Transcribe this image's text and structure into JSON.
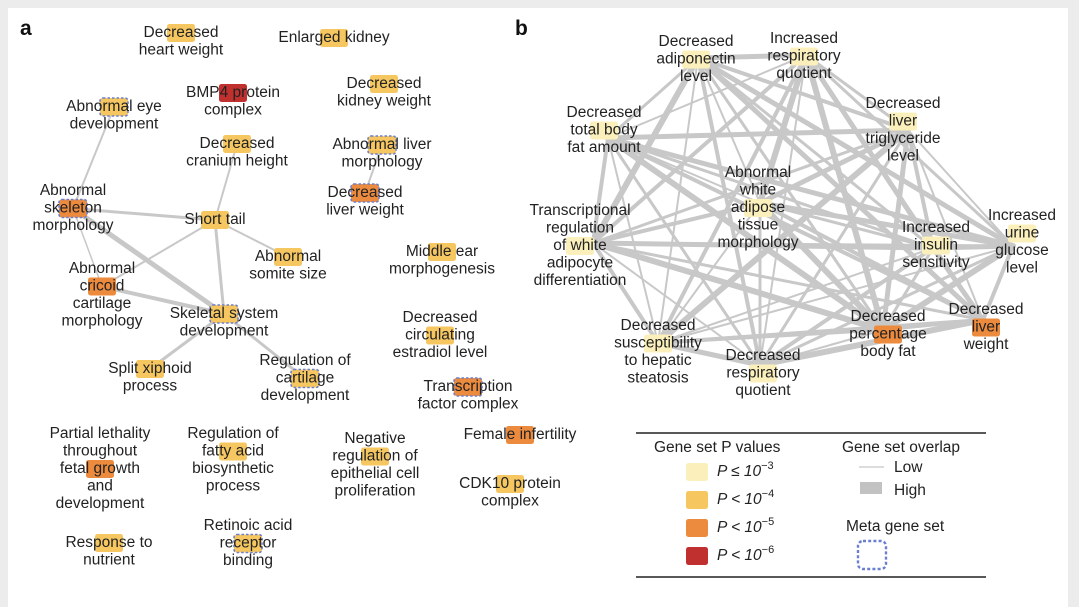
{
  "colors": {
    "p3": "#fbf0bc",
    "p4": "#f6c761",
    "p5": "#ec8b3e",
    "p6": "#c0302e",
    "meta": "#6b7fd0",
    "edge": "#c8c8c8"
  },
  "panels": {
    "a": {
      "letter": "a",
      "nodes": [
        {
          "id": "dhw",
          "lines": [
            "Decreased",
            "heart weight"
          ],
          "color": "p4"
        },
        {
          "id": "ek",
          "lines": [
            "Enlarged kidney"
          ],
          "color": "p4"
        },
        {
          "id": "dkw",
          "lines": [
            "Decreased",
            "kidney weight"
          ],
          "color": "p4"
        },
        {
          "id": "bmp",
          "lines": [
            "BMP4 protein",
            "complex"
          ],
          "color": "p6"
        },
        {
          "id": "aed",
          "lines": [
            "Abnormal eye",
            "development"
          ],
          "color": "p4",
          "meta": true
        },
        {
          "id": "dch",
          "lines": [
            "Decreased",
            "cranium height"
          ],
          "color": "p4"
        },
        {
          "id": "alm",
          "lines": [
            "Abnormal liver",
            "morphology"
          ],
          "color": "p4",
          "meta": true
        },
        {
          "id": "dlw",
          "lines": [
            "Decreased",
            "liver weight"
          ],
          "color": "p5",
          "meta": true
        },
        {
          "id": "asm",
          "lines": [
            "Abnormal",
            "skeleton",
            "morphology"
          ],
          "color": "p5",
          "meta": true
        },
        {
          "id": "st",
          "lines": [
            "Short tail"
          ],
          "color": "p4"
        },
        {
          "id": "ass",
          "lines": [
            "Abnormal",
            "somite size"
          ],
          "color": "p4"
        },
        {
          "id": "mem",
          "lines": [
            "Middle ear",
            "morphogenesis"
          ],
          "color": "p4"
        },
        {
          "id": "acc",
          "lines": [
            "Abnormal",
            "cricoid",
            "cartilage",
            "morphology"
          ],
          "color": "p5"
        },
        {
          "id": "ssd",
          "lines": [
            "Skeletal system",
            "development"
          ],
          "color": "p4",
          "meta": true
        },
        {
          "id": "dce",
          "lines": [
            "Decreased",
            "circulating",
            "estradiol level"
          ],
          "color": "p4"
        },
        {
          "id": "sxp",
          "lines": [
            "Split xiphoid",
            "process"
          ],
          "color": "p4"
        },
        {
          "id": "rcd",
          "lines": [
            "Regulation of",
            "cartilage",
            "development"
          ],
          "color": "p4",
          "meta": true
        },
        {
          "id": "tfc",
          "lines": [
            "Transcription",
            "factor complex"
          ],
          "color": "p5",
          "meta": true
        },
        {
          "id": "plt",
          "lines": [
            "Partial lethality",
            "throughout",
            "fetal growth",
            "and",
            "development"
          ],
          "color": "p5"
        },
        {
          "id": "rfa",
          "lines": [
            "Regulation of",
            "fatty acid",
            "biosynthetic",
            "process"
          ],
          "color": "p4"
        },
        {
          "id": "nre",
          "lines": [
            "Negative",
            "regulation of",
            "epithelial cell",
            "proliferation"
          ],
          "color": "p4"
        },
        {
          "id": "fi",
          "lines": [
            "Female infertility"
          ],
          "color": "p5"
        },
        {
          "id": "cdk",
          "lines": [
            "CDK10 protein",
            "complex"
          ],
          "color": "p4"
        },
        {
          "id": "rtn",
          "lines": [
            "Response to",
            "nutrient"
          ],
          "color": "p4"
        },
        {
          "id": "rar",
          "lines": [
            "Retinoic acid",
            "receptor",
            "binding"
          ],
          "color": "p4",
          "meta": true
        }
      ],
      "edges": [
        {
          "from": "aed",
          "to": "asm",
          "w": 2
        },
        {
          "from": "asm",
          "to": "st",
          "w": 3
        },
        {
          "from": "asm",
          "to": "ssd",
          "w": 5
        },
        {
          "from": "asm",
          "to": "acc",
          "w": 1.5
        },
        {
          "from": "dch",
          "to": "st",
          "w": 2
        },
        {
          "from": "st",
          "to": "ass",
          "w": 2
        },
        {
          "from": "st",
          "to": "acc",
          "w": 2
        },
        {
          "from": "st",
          "to": "ssd",
          "w": 3
        },
        {
          "from": "acc",
          "to": "ssd",
          "w": 4
        },
        {
          "from": "ssd",
          "to": "sxp",
          "w": 3
        },
        {
          "from": "ssd",
          "to": "rcd",
          "w": 3
        },
        {
          "from": "alm",
          "to": "dlw",
          "w": 2
        }
      ]
    },
    "b": {
      "letter": "b",
      "nodes": [
        {
          "id": "dal",
          "lines": [
            "Decreased",
            "adiponectin",
            "level"
          ],
          "color": "p3"
        },
        {
          "id": "irq",
          "lines": [
            "Increased",
            "respiratory",
            "quotient"
          ],
          "color": "p3"
        },
        {
          "id": "dtbf",
          "lines": [
            "Decreased",
            "total body",
            "fat amount"
          ],
          "color": "p3"
        },
        {
          "id": "dltl",
          "lines": [
            "Decreased",
            "liver",
            "triglyceride",
            "level"
          ],
          "color": "p3"
        },
        {
          "id": "awat",
          "lines": [
            "Abnormal",
            "white",
            "adipose",
            "tissue",
            "morphology"
          ],
          "color": "p3"
        },
        {
          "id": "trwad",
          "lines": [
            "Transcriptional",
            "regulation",
            "of white",
            "adipocyte",
            "differentiation"
          ],
          "color": "p3"
        },
        {
          "id": "iis",
          "lines": [
            "Increased",
            "insulin",
            "sensitivity"
          ],
          "color": "p3"
        },
        {
          "id": "iugl",
          "lines": [
            "Increased",
            "urine",
            "glucose",
            "level"
          ],
          "color": "p3"
        },
        {
          "id": "dsths",
          "lines": [
            "Decreased",
            "susceptibility",
            "to hepatic",
            "steatosis"
          ],
          "color": "p3"
        },
        {
          "id": "drq",
          "lines": [
            "Decreased",
            "respiratory",
            "quotient"
          ],
          "color": "p3"
        },
        {
          "id": "dpbf",
          "lines": [
            "Decreased",
            "percentage",
            "body fat"
          ],
          "color": "p5"
        },
        {
          "id": "dlwb",
          "lines": [
            "Decreased",
            "liver",
            "weight"
          ],
          "color": "p5"
        }
      ]
    }
  },
  "legend": {
    "pvalues_title": "Gene set P values",
    "pvalues": [
      {
        "color": "p3",
        "pre": "P ≤ 10",
        "exp": "−3"
      },
      {
        "color": "p4",
        "pre": "P < 10",
        "exp": "−4"
      },
      {
        "color": "p5",
        "pre": "P < 10",
        "exp": "−5"
      },
      {
        "color": "p6",
        "pre": "P < 10",
        "exp": "−6"
      }
    ],
    "overlap_title": "Gene set overlap",
    "overlap_low": "Low",
    "overlap_high": "High",
    "meta_title": "Meta gene set"
  }
}
